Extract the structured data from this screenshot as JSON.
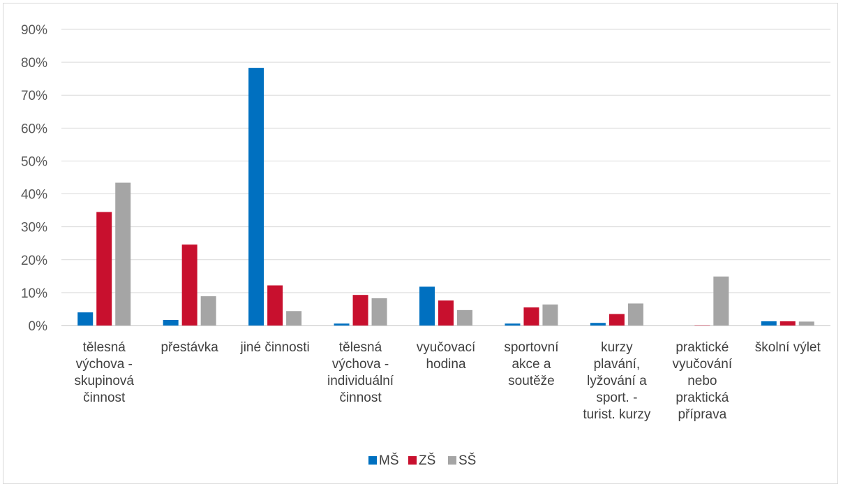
{
  "chart_data": {
    "type": "bar",
    "categories": [
      [
        "tělesná",
        "výchova -",
        "skupinová",
        "činnost"
      ],
      [
        "přestávka"
      ],
      [
        "jiné činnosti"
      ],
      [
        "tělesná",
        "výchova -",
        "individuální",
        "činnost"
      ],
      [
        "vyučovací",
        "hodina"
      ],
      [
        "sportovní",
        "akce a",
        "soutěže"
      ],
      [
        "kurzy",
        "plavání,",
        "lyžování a",
        "sport. -",
        "turist. kurzy"
      ],
      [
        "praktické",
        "vyučování",
        "nebo",
        "praktická",
        "příprava"
      ],
      [
        "školní výlet"
      ]
    ],
    "series": [
      {
        "name": "MŠ",
        "color": "#0070C0",
        "values": [
          4.0,
          1.7,
          78.3,
          0.6,
          11.8,
          0.6,
          0.8,
          0.0,
          1.3
        ]
      },
      {
        "name": "ZŠ",
        "color": "#C8102E",
        "values": [
          34.5,
          24.6,
          12.2,
          9.3,
          7.6,
          5.5,
          3.5,
          0.1,
          1.3
        ]
      },
      {
        "name": "SŠ",
        "color": "#A5A5A5",
        "values": [
          43.4,
          8.9,
          4.4,
          8.3,
          4.7,
          6.4,
          6.7,
          14.9,
          1.2
        ]
      }
    ],
    "ylim": [
      0,
      90
    ],
    "yticks": [
      "0%",
      "10%",
      "20%",
      "30%",
      "40%",
      "50%",
      "60%",
      "70%",
      "80%",
      "90%"
    ],
    "grid": true,
    "legend_position": "bottom"
  }
}
